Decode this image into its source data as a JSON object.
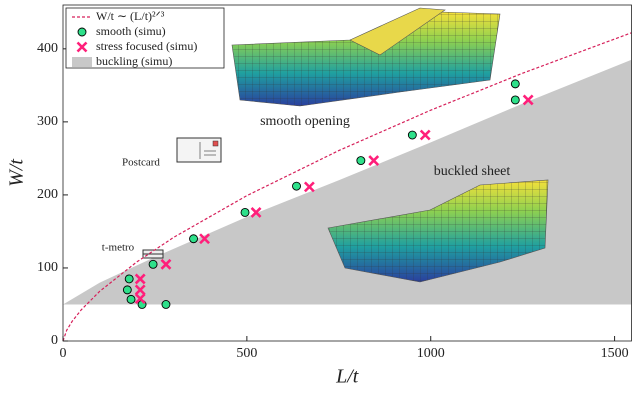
{
  "chart_data": {
    "type": "scatter",
    "xlabel": "L/t",
    "ylabel": "W/t",
    "xlim": [
      0,
      1546
    ],
    "ylim": [
      0,
      460
    ],
    "xticks": [
      0,
      500,
      1000,
      1500
    ],
    "yticks": [
      0,
      100,
      200,
      300,
      400
    ],
    "series": [
      {
        "name": "buckling (simu)",
        "type": "area",
        "color": "#c8c8c8",
        "x": [
          0,
          100,
          250,
          500,
          750,
          1000,
          1250,
          1546
        ],
        "values": [
          50,
          80,
          115,
          170,
          220,
          272,
          325,
          385
        ],
        "lower": [
          50,
          50,
          50,
          50,
          50,
          50,
          50,
          50
        ]
      },
      {
        "name": "W/t ∼ (L/t)²ᐟ³",
        "type": "line",
        "color": "#d6205a",
        "x": [
          0,
          10,
          25,
          50,
          100,
          200,
          300,
          500,
          750,
          1000,
          1250,
          1546
        ],
        "values": [
          0,
          14.7,
          27,
          42.9,
          68.1,
          108,
          141.6,
          199,
          260.7,
          316,
          366.6,
          422
        ]
      },
      {
        "name": "smooth (simu)",
        "type": "scatter",
        "marker": "circle",
        "color": "#2ee08a",
        "x": [
          180,
          175,
          185,
          215,
          280,
          245,
          355,
          495,
          635,
          810,
          950,
          1230,
          1230
        ],
        "values": [
          85,
          70,
          57,
          50,
          50,
          105,
          140,
          176,
          212,
          247,
          282,
          352,
          330
        ]
      },
      {
        "name": "stress focused (simu)",
        "type": "scatter",
        "marker": "x",
        "color": "#ff1f7a",
        "x": [
          210,
          210,
          210,
          280,
          385,
          525,
          670,
          845,
          985,
          1265
        ],
        "values": [
          85,
          70,
          58,
          105,
          140,
          176,
          211,
          247,
          282,
          330
        ]
      }
    ],
    "legend_order": [
      1,
      2,
      3,
      0
    ],
    "annotations": [
      "smooth opening",
      "buckled sheet",
      "Postcard",
      "t-metro"
    ]
  }
}
